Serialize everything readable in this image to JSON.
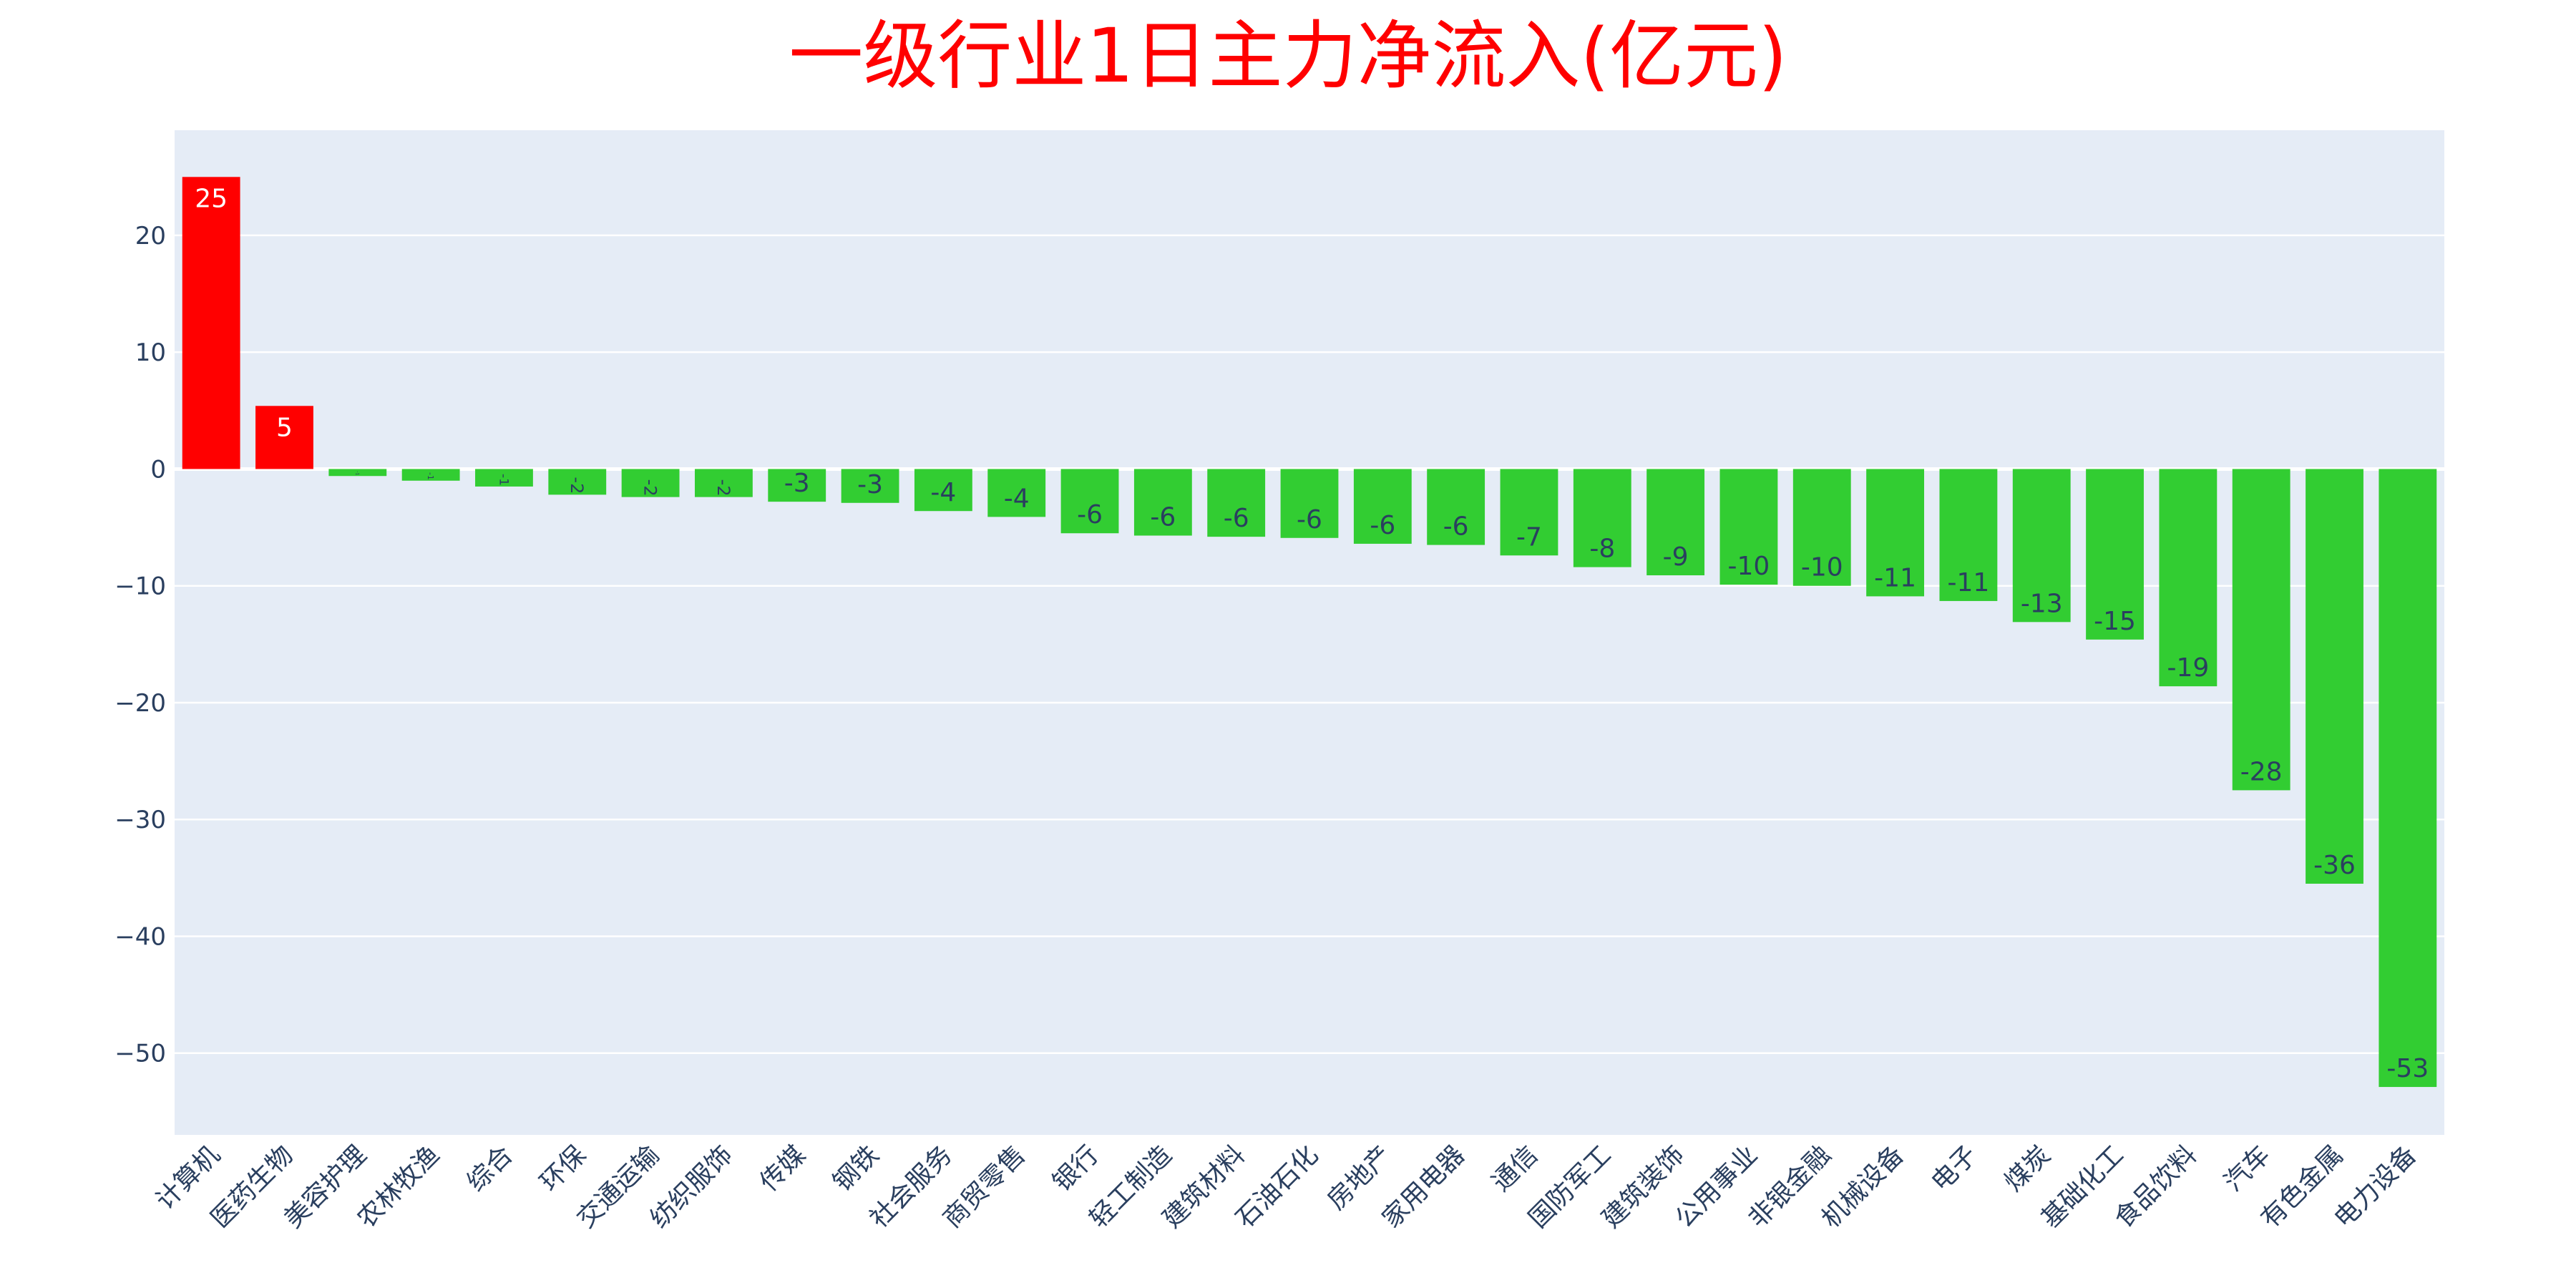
{
  "chart_data": {
    "type": "bar",
    "title": "一级行业1日主力净流入(亿元)",
    "xlabel": "",
    "ylabel": "",
    "ylim": [
      -57,
      29
    ],
    "yticks": [
      20,
      10,
      0,
      -10,
      -20,
      -30,
      -40,
      -50
    ],
    "grid": true,
    "legend": "none",
    "categories": [
      "计算机",
      "医药生物",
      "美容护理",
      "农林牧渔",
      "综合",
      "环保",
      "交通运输",
      "纺织服饰",
      "传媒",
      "钢铁",
      "社会服务",
      "商贸零售",
      "银行",
      "轻工制造",
      "建筑材料",
      "石油石化",
      "房地产",
      "家用电器",
      "通信",
      "国防军工",
      "建筑装饰",
      "公用事业",
      "非银金融",
      "机械设备",
      "电子",
      "煤炭",
      "基础化工",
      "食品饮料",
      "汽车",
      "有色金属",
      "电力设备"
    ],
    "values": [
      25,
      5.4,
      -0.6,
      -1.0,
      -1.5,
      -2.2,
      -2.4,
      -2.4,
      -2.8,
      -2.9,
      -3.6,
      -4.1,
      -5.5,
      -5.7,
      -5.8,
      -5.9,
      -6.4,
      -6.5,
      -7.4,
      -8.4,
      -9.1,
      -9.9,
      -10.0,
      -10.9,
      -11.3,
      -13.1,
      -14.6,
      -18.6,
      -27.5,
      -35.5,
      -52.9
    ],
    "labels": [
      "25",
      "5",
      "-1",
      "-1",
      "-1",
      "-2",
      "-2",
      "-2",
      "-3",
      "-3",
      "-4",
      "-4",
      "-6",
      "-6",
      "-6",
      "-6",
      "-6",
      "-6",
      "-7",
      "-8",
      "-9",
      "-10",
      "-10",
      "-11",
      "-11",
      "-13",
      "-15",
      "-19",
      "-28",
      "-36",
      "-53"
    ],
    "colors": {
      "positive": "#ff0000",
      "negative": "#32cd32",
      "plot_background": "#e5ecf6",
      "grid": "#ffffff",
      "axis_text": "#2a3f5f",
      "title": "#ff0000"
    }
  }
}
